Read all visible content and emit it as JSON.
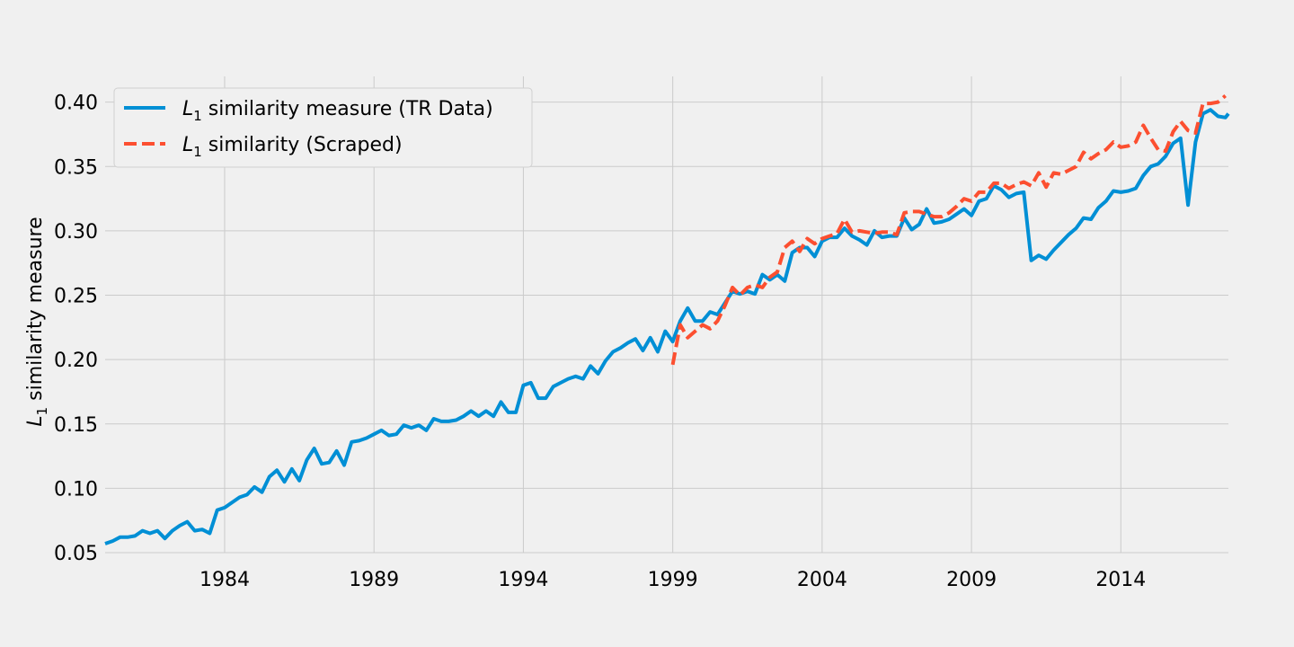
{
  "chart_data": {
    "type": "line",
    "title": "",
    "xlabel": "",
    "ylabel": {
      "prefix": "L",
      "sub": "1",
      "rest": " similarity measure"
    },
    "xlim": [
      1980.0,
      2017.6
    ],
    "ylim": [
      0.05,
      0.42
    ],
    "xticks": [
      1984,
      1989,
      1994,
      1999,
      2004,
      2009,
      2014
    ],
    "yticks": [
      "0.05",
      "0.10",
      "0.15",
      "0.20",
      "0.25",
      "0.30",
      "0.35",
      "0.40"
    ],
    "grid": true,
    "legend_position": "top-left",
    "series": [
      {
        "name": {
          "prefix": "L",
          "sub": "1",
          "rest": " similarity measure (TR Data)"
        },
        "color": "#008fd5",
        "style": "solid",
        "points": [
          [
            1980.0,
            0.057
          ],
          [
            1980.25,
            0.059
          ],
          [
            1980.5,
            0.062
          ],
          [
            1980.75,
            0.062
          ],
          [
            1981.0,
            0.063
          ],
          [
            1981.25,
            0.067
          ],
          [
            1981.5,
            0.065
          ],
          [
            1981.75,
            0.067
          ],
          [
            1982.0,
            0.061
          ],
          [
            1982.25,
            0.067
          ],
          [
            1982.5,
            0.071
          ],
          [
            1982.75,
            0.074
          ],
          [
            1983.0,
            0.067
          ],
          [
            1983.25,
            0.068
          ],
          [
            1983.5,
            0.065
          ],
          [
            1983.75,
            0.083
          ],
          [
            1984.0,
            0.085
          ],
          [
            1984.25,
            0.089
          ],
          [
            1984.5,
            0.093
          ],
          [
            1984.75,
            0.095
          ],
          [
            1985.0,
            0.101
          ],
          [
            1985.25,
            0.097
          ],
          [
            1985.5,
            0.109
          ],
          [
            1985.75,
            0.114
          ],
          [
            1986.0,
            0.105
          ],
          [
            1986.25,
            0.115
          ],
          [
            1986.5,
            0.106
          ],
          [
            1986.75,
            0.122
          ],
          [
            1987.0,
            0.131
          ],
          [
            1987.25,
            0.119
          ],
          [
            1987.5,
            0.12
          ],
          [
            1987.75,
            0.129
          ],
          [
            1988.0,
            0.118
          ],
          [
            1988.25,
            0.136
          ],
          [
            1988.5,
            0.137
          ],
          [
            1988.75,
            0.139
          ],
          [
            1989.0,
            0.142
          ],
          [
            1989.25,
            0.145
          ],
          [
            1989.5,
            0.141
          ],
          [
            1989.75,
            0.142
          ],
          [
            1990.0,
            0.149
          ],
          [
            1990.25,
            0.147
          ],
          [
            1990.5,
            0.149
          ],
          [
            1990.75,
            0.145
          ],
          [
            1991.0,
            0.154
          ],
          [
            1991.25,
            0.152
          ],
          [
            1991.5,
            0.152
          ],
          [
            1991.75,
            0.153
          ],
          [
            1992.0,
            0.156
          ],
          [
            1992.25,
            0.16
          ],
          [
            1992.5,
            0.156
          ],
          [
            1992.75,
            0.16
          ],
          [
            1993.0,
            0.156
          ],
          [
            1993.25,
            0.167
          ],
          [
            1993.5,
            0.159
          ],
          [
            1993.75,
            0.159
          ],
          [
            1994.0,
            0.18
          ],
          [
            1994.25,
            0.182
          ],
          [
            1994.5,
            0.17
          ],
          [
            1994.75,
            0.17
          ],
          [
            1995.0,
            0.179
          ],
          [
            1995.25,
            0.182
          ],
          [
            1995.5,
            0.185
          ],
          [
            1995.75,
            0.187
          ],
          [
            1996.0,
            0.185
          ],
          [
            1996.25,
            0.195
          ],
          [
            1996.5,
            0.189
          ],
          [
            1996.75,
            0.199
          ],
          [
            1997.0,
            0.206
          ],
          [
            1997.25,
            0.209
          ],
          [
            1997.5,
            0.213
          ],
          [
            1997.75,
            0.216
          ],
          [
            1998.0,
            0.207
          ],
          [
            1998.25,
            0.217
          ],
          [
            1998.5,
            0.206
          ],
          [
            1998.75,
            0.222
          ],
          [
            1999.0,
            0.214
          ],
          [
            1999.25,
            0.23
          ],
          [
            1999.5,
            0.24
          ],
          [
            1999.75,
            0.23
          ],
          [
            2000.0,
            0.23
          ],
          [
            2000.25,
            0.237
          ],
          [
            2000.5,
            0.235
          ],
          [
            2000.75,
            0.244
          ],
          [
            2001.0,
            0.253
          ],
          [
            2001.25,
            0.251
          ],
          [
            2001.5,
            0.253
          ],
          [
            2001.75,
            0.251
          ],
          [
            2002.0,
            0.266
          ],
          [
            2002.25,
            0.262
          ],
          [
            2002.5,
            0.266
          ],
          [
            2002.75,
            0.261
          ],
          [
            2003.0,
            0.283
          ],
          [
            2003.25,
            0.287
          ],
          [
            2003.5,
            0.287
          ],
          [
            2003.75,
            0.28
          ],
          [
            2004.0,
            0.292
          ],
          [
            2004.25,
            0.295
          ],
          [
            2004.5,
            0.295
          ],
          [
            2004.75,
            0.302
          ],
          [
            2005.0,
            0.296
          ],
          [
            2005.25,
            0.293
          ],
          [
            2005.5,
            0.289
          ],
          [
            2005.75,
            0.3
          ],
          [
            2006.0,
            0.295
          ],
          [
            2006.25,
            0.296
          ],
          [
            2006.5,
            0.296
          ],
          [
            2006.75,
            0.31
          ],
          [
            2007.0,
            0.301
          ],
          [
            2007.25,
            0.305
          ],
          [
            2007.5,
            0.317
          ],
          [
            2007.75,
            0.306
          ],
          [
            2008.0,
            0.307
          ],
          [
            2008.25,
            0.309
          ],
          [
            2008.5,
            0.313
          ],
          [
            2008.75,
            0.317
          ],
          [
            2009.0,
            0.312
          ],
          [
            2009.25,
            0.323
          ],
          [
            2009.5,
            0.325
          ],
          [
            2009.75,
            0.335
          ],
          [
            2010.0,
            0.332
          ],
          [
            2010.25,
            0.326
          ],
          [
            2010.5,
            0.329
          ],
          [
            2010.75,
            0.33
          ],
          [
            2011.0,
            0.277
          ],
          [
            2011.25,
            0.281
          ],
          [
            2011.5,
            0.278
          ],
          [
            2011.75,
            0.285
          ],
          [
            2012.0,
            0.291
          ],
          [
            2012.25,
            0.297
          ],
          [
            2012.5,
            0.302
          ],
          [
            2012.75,
            0.31
          ],
          [
            2013.0,
            0.309
          ],
          [
            2013.25,
            0.318
          ],
          [
            2013.5,
            0.323
          ],
          [
            2013.75,
            0.331
          ],
          [
            2014.0,
            0.33
          ],
          [
            2014.25,
            0.331
          ],
          [
            2014.5,
            0.333
          ],
          [
            2014.75,
            0.343
          ],
          [
            2015.0,
            0.35
          ],
          [
            2015.25,
            0.352
          ],
          [
            2015.5,
            0.358
          ],
          [
            2015.75,
            0.368
          ],
          [
            2016.0,
            0.372
          ],
          [
            2016.25,
            0.32
          ],
          [
            2016.5,
            0.369
          ],
          [
            2016.75,
            0.391
          ],
          [
            2017.0,
            0.394
          ],
          [
            2017.25,
            0.389
          ],
          [
            2017.5,
            0.388
          ],
          [
            2017.6,
            0.391
          ]
        ]
      },
      {
        "name": {
          "prefix": "L",
          "sub": "1",
          "rest": " similarity (Scraped)"
        },
        "color": "#fc4f30",
        "style": "dashed",
        "points": [
          [
            1999.0,
            0.196
          ],
          [
            1999.25,
            0.227
          ],
          [
            1999.5,
            0.217
          ],
          [
            1999.75,
            0.222
          ],
          [
            2000.0,
            0.227
          ],
          [
            2000.25,
            0.224
          ],
          [
            2000.5,
            0.23
          ],
          [
            2000.75,
            0.242
          ],
          [
            2001.0,
            0.256
          ],
          [
            2001.25,
            0.25
          ],
          [
            2001.5,
            0.256
          ],
          [
            2001.75,
            0.258
          ],
          [
            2002.0,
            0.256
          ],
          [
            2002.25,
            0.264
          ],
          [
            2002.5,
            0.268
          ],
          [
            2002.75,
            0.287
          ],
          [
            2003.0,
            0.292
          ],
          [
            2003.25,
            0.284
          ],
          [
            2003.5,
            0.294
          ],
          [
            2003.75,
            0.29
          ],
          [
            2004.0,
            0.294
          ],
          [
            2004.25,
            0.296
          ],
          [
            2004.5,
            0.298
          ],
          [
            2004.75,
            0.309
          ],
          [
            2005.0,
            0.299
          ],
          [
            2005.25,
            0.3
          ],
          [
            2005.5,
            0.299
          ],
          [
            2005.75,
            0.298
          ],
          [
            2006.0,
            0.299
          ],
          [
            2006.25,
            0.299
          ],
          [
            2006.5,
            0.297
          ],
          [
            2006.75,
            0.314
          ],
          [
            2007.0,
            0.315
          ],
          [
            2007.25,
            0.315
          ],
          [
            2007.5,
            0.313
          ],
          [
            2007.75,
            0.311
          ],
          [
            2008.0,
            0.311
          ],
          [
            2008.25,
            0.314
          ],
          [
            2008.5,
            0.319
          ],
          [
            2008.75,
            0.325
          ],
          [
            2009.0,
            0.323
          ],
          [
            2009.25,
            0.33
          ],
          [
            2009.5,
            0.33
          ],
          [
            2009.75,
            0.337
          ],
          [
            2010.0,
            0.337
          ],
          [
            2010.25,
            0.333
          ],
          [
            2010.5,
            0.336
          ],
          [
            2010.75,
            0.338
          ],
          [
            2011.0,
            0.335
          ],
          [
            2011.25,
            0.345
          ],
          [
            2011.5,
            0.334
          ],
          [
            2011.75,
            0.345
          ],
          [
            2012.0,
            0.344
          ],
          [
            2012.25,
            0.347
          ],
          [
            2012.5,
            0.35
          ],
          [
            2012.75,
            0.361
          ],
          [
            2013.0,
            0.356
          ],
          [
            2013.25,
            0.36
          ],
          [
            2013.5,
            0.363
          ],
          [
            2013.75,
            0.369
          ],
          [
            2014.0,
            0.365
          ],
          [
            2014.25,
            0.366
          ],
          [
            2014.5,
            0.369
          ],
          [
            2014.75,
            0.382
          ],
          [
            2015.0,
            0.372
          ],
          [
            2015.25,
            0.363
          ],
          [
            2015.5,
            0.362
          ],
          [
            2015.75,
            0.377
          ],
          [
            2016.0,
            0.385
          ],
          [
            2016.25,
            0.378
          ],
          [
            2016.5,
            0.376
          ],
          [
            2016.75,
            0.399
          ],
          [
            2017.0,
            0.399
          ],
          [
            2017.25,
            0.4
          ],
          [
            2017.5,
            0.405
          ]
        ]
      }
    ]
  }
}
